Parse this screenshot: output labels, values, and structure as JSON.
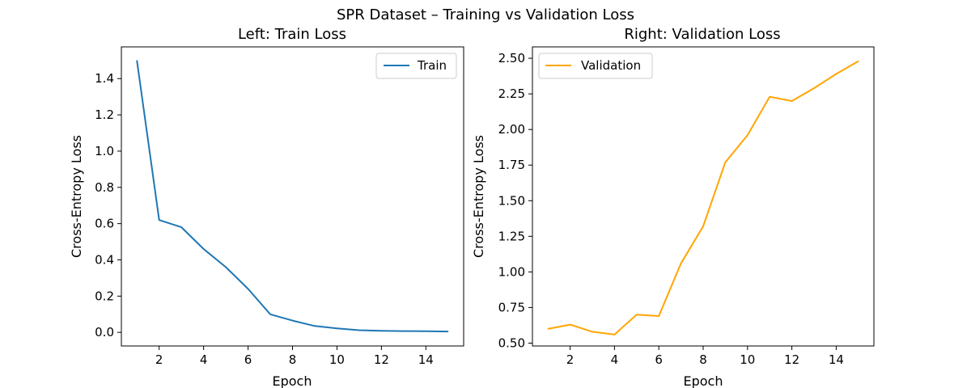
{
  "figure_title": "SPR Dataset – Training vs Validation Loss",
  "chart_data": [
    {
      "type": "line",
      "title": "Left: Train Loss",
      "xlabel": "Epoch",
      "ylabel": "Cross-Entropy Loss",
      "xlim": [
        0.3,
        15.7
      ],
      "ylim": [
        -0.075,
        1.575
      ],
      "xticks": [
        2,
        4,
        6,
        8,
        10,
        12,
        14
      ],
      "yticks": [
        0.0,
        0.2,
        0.4,
        0.6,
        0.8,
        1.0,
        1.2,
        1.4
      ],
      "ytick_decimals": 1,
      "legend_position": "top-right",
      "series": [
        {
          "name": "Train",
          "color": "#1f77b4",
          "x": [
            1,
            2,
            3,
            4,
            5,
            6,
            7,
            8,
            9,
            10,
            11,
            12,
            13,
            14,
            15
          ],
          "y": [
            1.5,
            0.62,
            0.58,
            0.46,
            0.36,
            0.24,
            0.1,
            0.065,
            0.035,
            0.022,
            0.012,
            0.009,
            0.007,
            0.006,
            0.005
          ]
        }
      ]
    },
    {
      "type": "line",
      "title": "Right: Validation Loss",
      "xlabel": "Epoch",
      "ylabel": "Cross-Entropy Loss",
      "xlim": [
        0.3,
        15.7
      ],
      "ylim": [
        0.48,
        2.58
      ],
      "xticks": [
        2,
        4,
        6,
        8,
        10,
        12,
        14
      ],
      "yticks": [
        0.5,
        0.75,
        1.0,
        1.25,
        1.5,
        1.75,
        2.0,
        2.25,
        2.5
      ],
      "ytick_decimals": 2,
      "legend_position": "top-left",
      "series": [
        {
          "name": "Validation",
          "color": "#ffa500",
          "x": [
            1,
            2,
            3,
            4,
            5,
            6,
            7,
            8,
            9,
            10,
            11,
            12,
            13,
            14,
            15
          ],
          "y": [
            0.6,
            0.63,
            0.58,
            0.56,
            0.7,
            0.69,
            1.06,
            1.32,
            1.77,
            1.96,
            2.23,
            2.2,
            2.29,
            2.39,
            2.48
          ]
        }
      ]
    }
  ]
}
